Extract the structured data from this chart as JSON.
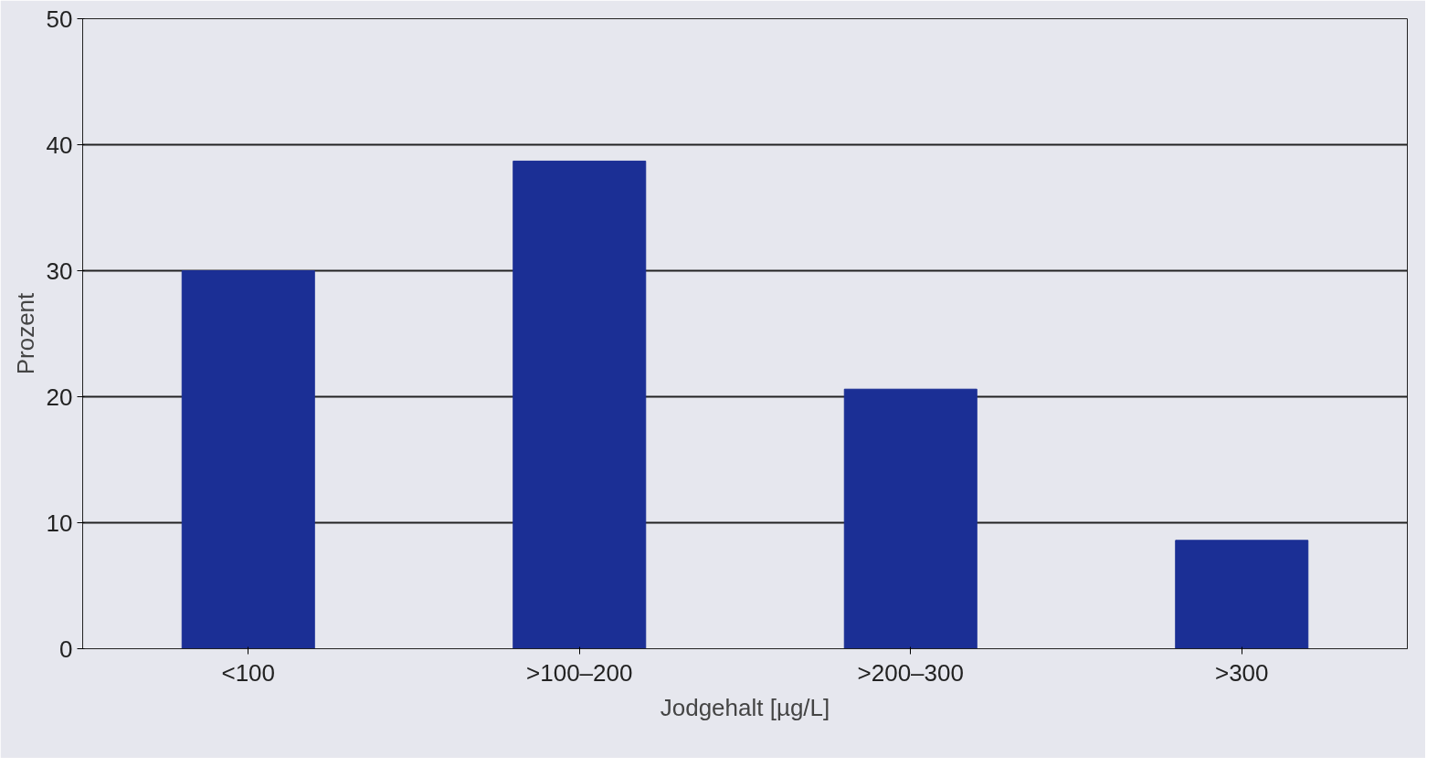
{
  "chart_data": {
    "type": "bar",
    "xlabel": "Jodgehalt [µg/L]",
    "ylabel": "Prozent",
    "categories": [
      "<100",
      ">100–200",
      ">200–300",
      ">300"
    ],
    "values": [
      30,
      38.7,
      20.6,
      8.6
    ],
    "color": "#1b2f95",
    "ylim": [
      0,
      50
    ],
    "yticks": [
      0,
      10,
      20,
      30,
      40,
      50
    ],
    "grid": "y"
  }
}
